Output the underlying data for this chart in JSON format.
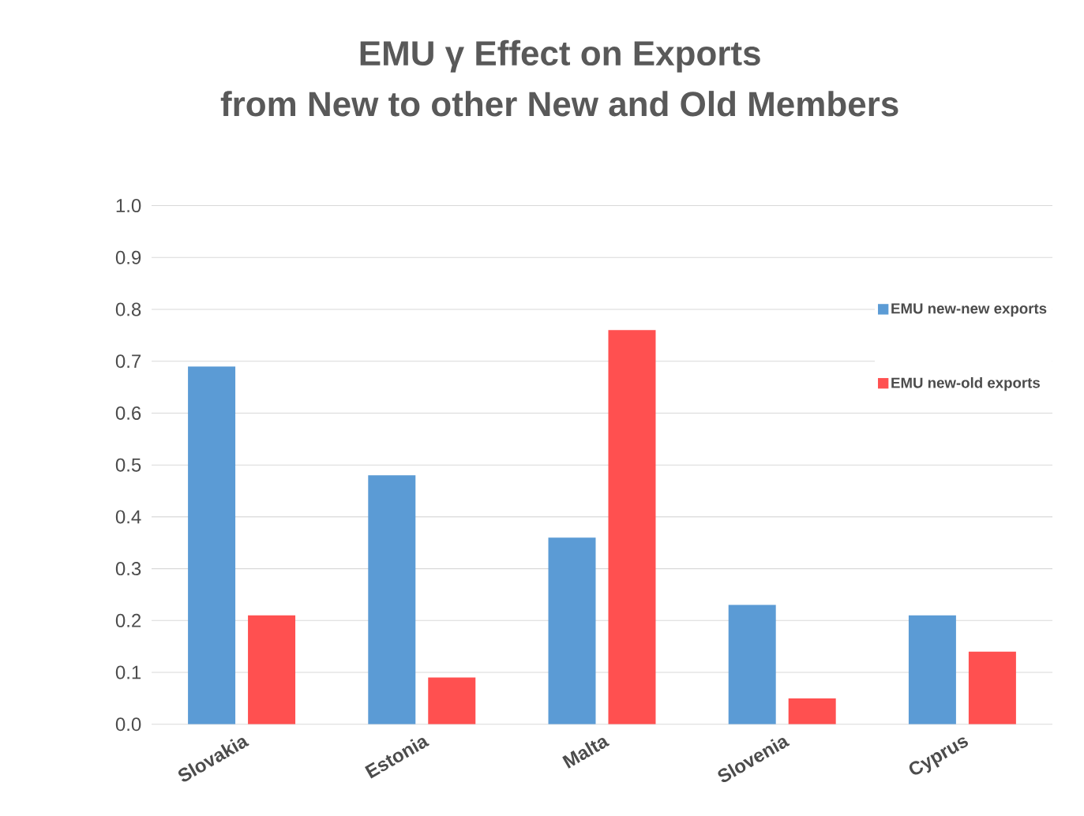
{
  "chart_data": {
    "type": "bar",
    "title": "EMU γ Effect on Exports",
    "subtitle": "from New to other New and Old Members",
    "categories": [
      "Slovakia",
      "Estonia",
      "Malta",
      "Slovenia",
      "Cyprus"
    ],
    "series": [
      {
        "name": "EMU new-new exports",
        "color": "#5b9bd5",
        "values": [
          0.69,
          0.48,
          0.36,
          0.23,
          0.21
        ]
      },
      {
        "name": "EMU new-old exports",
        "color": "#ff5050",
        "values": [
          0.21,
          0.09,
          0.76,
          0.05,
          0.14
        ]
      }
    ],
    "ylim": [
      0,
      1
    ],
    "yticks": [
      {
        "value": 0,
        "label": "0.0"
      },
      0.1,
      0.2,
      0.3,
      0.4,
      0.5,
      0.6,
      0.7,
      0.8,
      0.9,
      {
        "value": 1,
        "label": "1.0"
      }
    ],
    "grid": "y",
    "legend": "right"
  }
}
